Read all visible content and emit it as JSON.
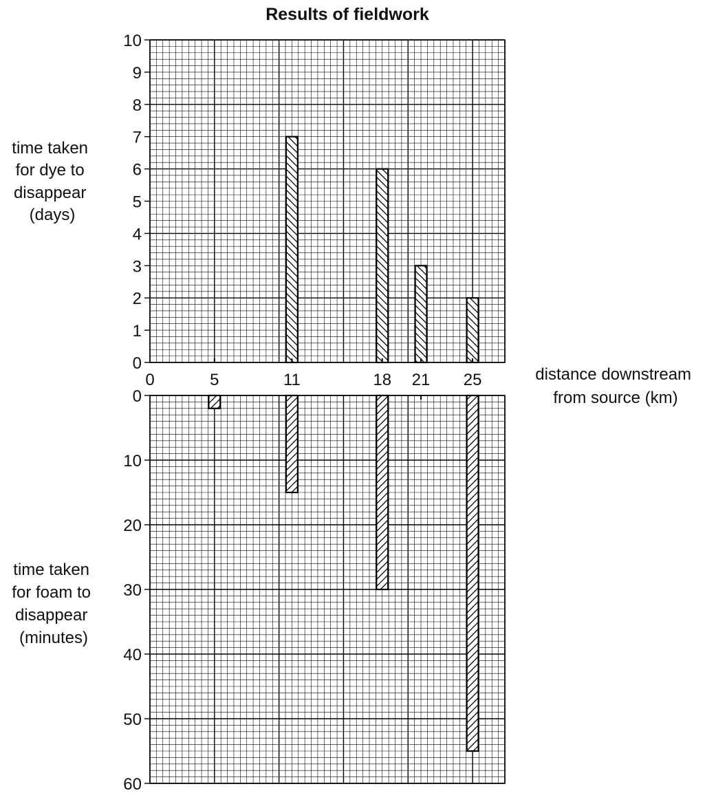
{
  "chart_data": [
    {
      "type": "bar",
      "title": "Results of fieldwork",
      "ylabel_lines": [
        "time taken",
        "for dye to",
        "disappear",
        "(days)"
      ],
      "xlabel_lines": [
        "distance downstream",
        "from source (km)"
      ],
      "ylim": [
        0,
        10
      ],
      "y_ticks": [
        0,
        1,
        2,
        3,
        4,
        5,
        6,
        7,
        8,
        9,
        10
      ],
      "x_ticks": [
        0,
        5,
        11,
        18,
        21,
        25
      ],
      "xlim": [
        0,
        27.5
      ],
      "grid": true,
      "x": [
        5,
        11,
        18,
        21,
        25
      ],
      "values": [
        0,
        7,
        6,
        3,
        2
      ]
    },
    {
      "type": "bar",
      "orientation": "downward",
      "ylabel_lines": [
        "time taken",
        "for foam to",
        "disappear",
        "(minutes)"
      ],
      "ylim": [
        0,
        60
      ],
      "y_ticks": [
        0,
        10,
        20,
        30,
        40,
        50,
        60
      ],
      "xlim": [
        0,
        27.5
      ],
      "grid": true,
      "x": [
        5,
        11,
        18,
        21,
        25
      ],
      "values": [
        2,
        15,
        30,
        0,
        55
      ]
    }
  ],
  "colors": {
    "grid": "#000000",
    "bar_fill": "#ffffff",
    "hatch": "#000000"
  }
}
